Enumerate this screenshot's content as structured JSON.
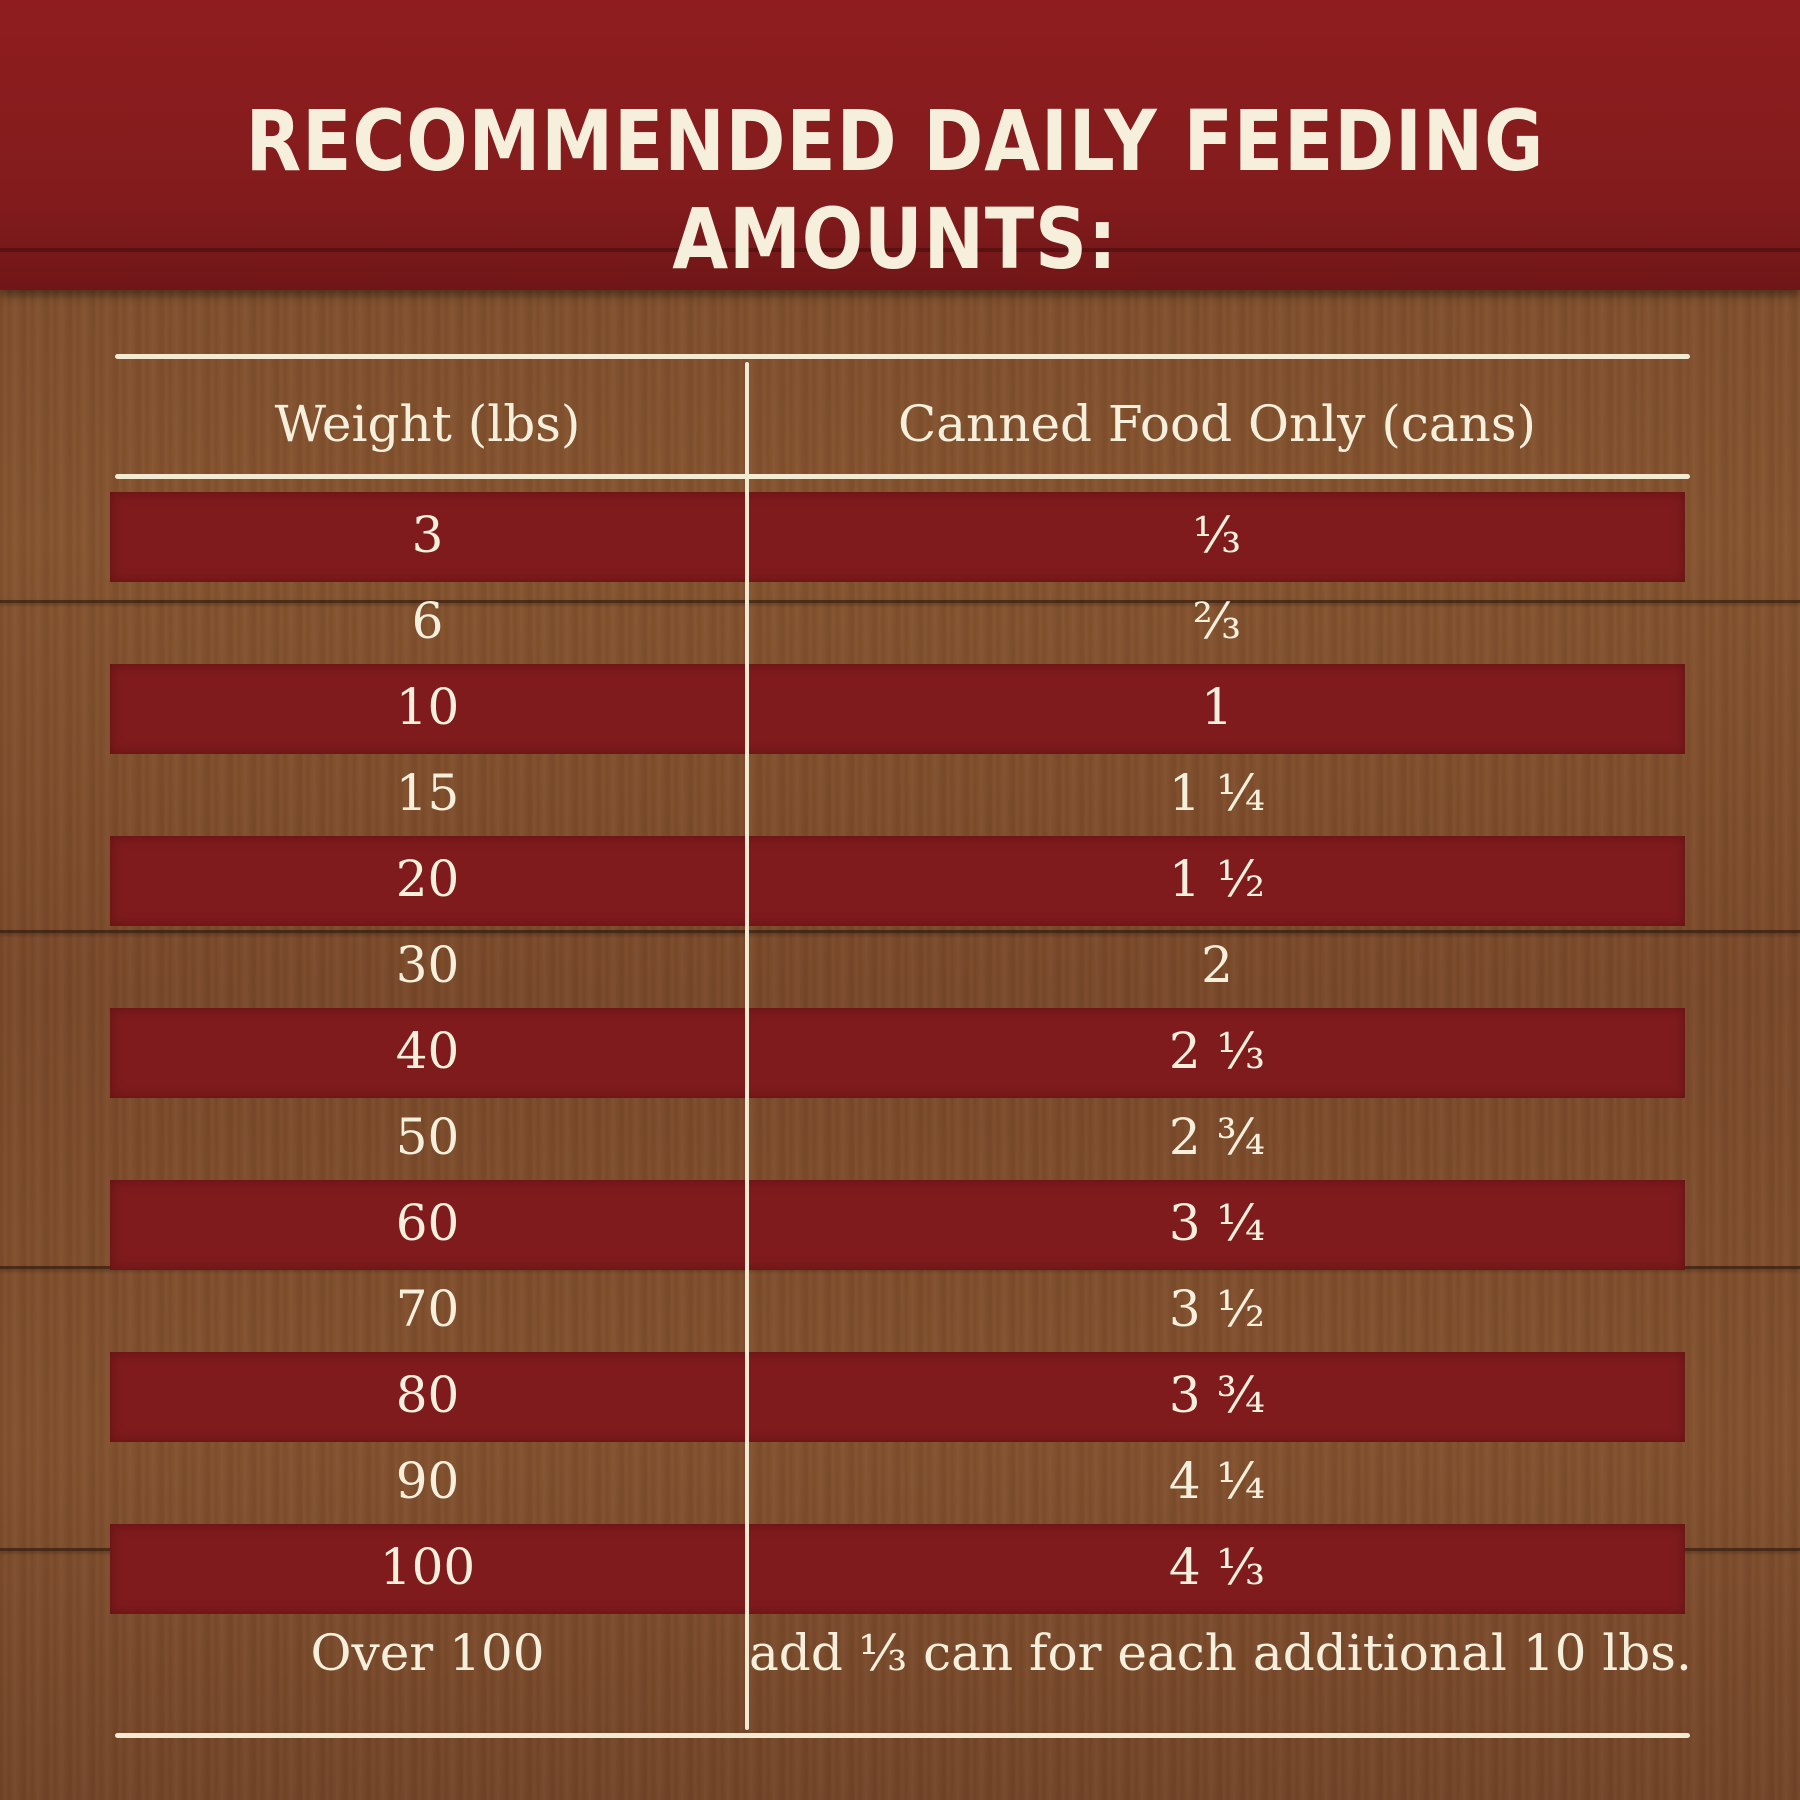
{
  "title": "RECOMMENDED DAILY FEEDING AMOUNTS:",
  "table": {
    "headers": [
      "Weight (lbs)",
      "Canned Food Only (cans)"
    ],
    "rows": [
      {
        "weight": "3",
        "cans": "⅓"
      },
      {
        "weight": "6",
        "cans": "⅔"
      },
      {
        "weight": "10",
        "cans": "1"
      },
      {
        "weight": "15",
        "cans": "1 ¼"
      },
      {
        "weight": "20",
        "cans": "1 ½"
      },
      {
        "weight": "30",
        "cans": "2"
      },
      {
        "weight": "40",
        "cans": "2 ⅓"
      },
      {
        "weight": "50",
        "cans": "2 ¾"
      },
      {
        "weight": "60",
        "cans": "3 ¼"
      },
      {
        "weight": "70",
        "cans": "3 ½"
      },
      {
        "weight": "80",
        "cans": "3 ¾"
      },
      {
        "weight": "90",
        "cans": "4 ¼"
      },
      {
        "weight": "100",
        "cans": "4 ⅓"
      },
      {
        "weight": "Over 100",
        "cans": "add ⅓ can for each additional 10 lbs."
      }
    ]
  },
  "colors": {
    "header_red": "#8f1d1f",
    "row_band_red": "#7f1b1d",
    "wood_brown": "#7a4a2b",
    "cream_text": "#f6efdc"
  }
}
